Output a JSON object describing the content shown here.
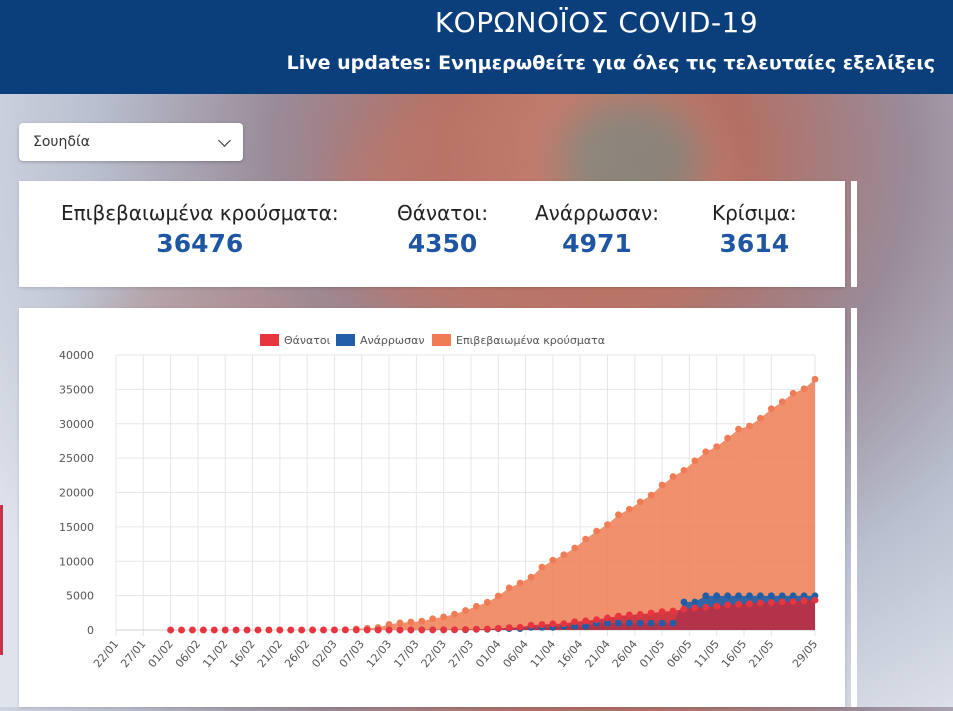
{
  "header": {
    "title": "ΚΟΡΩΝΟΪΟΣ COVID-19",
    "subtitle": "Live updates: Ενημερωθείτε για όλες τις τελευταίες εξελίξεις"
  },
  "country_select": {
    "value": "Σουηδία"
  },
  "stats": {
    "confirmed_label": "Επιβεβαιωμένα κρούσματα:",
    "confirmed_value": "36476",
    "deaths_label": "Θάνατοι:",
    "deaths_value": "4350",
    "recovered_label": "Ανάρρωσαν:",
    "recovered_value": "4971",
    "critical_label": "Κρίσιμα:",
    "critical_value": "3614"
  },
  "colors": {
    "header": "#0b3f7c",
    "accent": "#1f56a3",
    "deaths": "#e8343f",
    "recovered": "#1e5fa8",
    "confirmed": "#ef7c54"
  },
  "chart_data": {
    "type": "area",
    "title": "",
    "xlabel": "",
    "ylabel": "",
    "ylim": [
      0,
      40000
    ],
    "yticks": [
      0,
      5000,
      10000,
      15000,
      20000,
      25000,
      30000,
      35000,
      40000
    ],
    "legend_position": "top",
    "grid": true,
    "xticks": [
      "22/01",
      "27/01",
      "01/02",
      "06/02",
      "11/02",
      "16/02",
      "21/02",
      "26/02",
      "02/03",
      "07/03",
      "12/03",
      "17/03",
      "22/03",
      "27/03",
      "01/04",
      "06/04",
      "11/04",
      "16/04",
      "21/04",
      "26/04",
      "01/05",
      "06/05",
      "11/05",
      "16/05",
      "21/05",
      "29/05"
    ],
    "x": [
      "22/01",
      "27/01",
      "01/02",
      "03/02",
      "05/02",
      "07/02",
      "09/02",
      "11/02",
      "13/02",
      "15/02",
      "17/02",
      "19/02",
      "21/02",
      "23/02",
      "25/02",
      "27/02",
      "29/02",
      "02/03",
      "04/03",
      "06/03",
      "08/03",
      "10/03",
      "12/03",
      "14/03",
      "16/03",
      "18/03",
      "20/03",
      "22/03",
      "24/03",
      "26/03",
      "28/03",
      "30/03",
      "01/04",
      "03/04",
      "05/04",
      "07/04",
      "09/04",
      "11/04",
      "13/04",
      "15/04",
      "17/04",
      "19/04",
      "21/04",
      "23/04",
      "25/04",
      "27/04",
      "29/04",
      "01/05",
      "03/05",
      "05/05",
      "07/05",
      "09/05",
      "11/05",
      "13/05",
      "15/05",
      "17/05",
      "19/05",
      "21/05",
      "23/05",
      "25/05",
      "27/05",
      "29/05"
    ],
    "series": [
      {
        "name": "Θάνατοι",
        "color": "#e8343f",
        "values": [
          null,
          null,
          0,
          0,
          0,
          0,
          0,
          0,
          0,
          0,
          0,
          0,
          0,
          0,
          0,
          0,
          0,
          0,
          0,
          0,
          0,
          0,
          1,
          3,
          6,
          10,
          16,
          25,
          36,
          68,
          105,
          146,
          239,
          333,
          401,
          687,
          793,
          899,
          919,
          1203,
          1333,
          1511,
          1765,
          2021,
          2192,
          2274,
          2462,
          2669,
          2769,
          3040,
          3220,
          3313,
          3460,
          3646,
          3743,
          3831,
          3945,
          4020,
          4097,
          4125,
          4266,
          4350
        ]
      },
      {
        "name": "Ανάρρωσαν",
        "color": "#1e5fa8",
        "values": [
          null,
          null,
          null,
          null,
          null,
          null,
          null,
          null,
          null,
          null,
          null,
          null,
          null,
          null,
          null,
          null,
          null,
          null,
          null,
          null,
          null,
          1,
          1,
          1,
          1,
          16,
          16,
          16,
          16,
          16,
          103,
          103,
          205,
          205,
          205,
          381,
          381,
          381,
          550,
          550,
          550,
          1005,
          1005,
          1005,
          1005,
          1005,
          1005,
          1005,
          1005,
          4074,
          4074,
          4971,
          4971,
          4971,
          4971,
          4971,
          4971,
          4971,
          4971,
          4971,
          4971,
          4971
        ]
      },
      {
        "name": "Επιβεβαιωμένα κρούσματα",
        "color": "#ef7c54",
        "values": [
          null,
          null,
          1,
          1,
          1,
          1,
          1,
          1,
          1,
          1,
          1,
          1,
          1,
          1,
          2,
          7,
          12,
          15,
          52,
          161,
          248,
          355,
          814,
          1040,
          1167,
          1279,
          1639,
          1906,
          2299,
          2840,
          3447,
          4028,
          4947,
          6131,
          6830,
          7693,
          9141,
          10151,
          10948,
          11927,
          13216,
          14385,
          15322,
          16755,
          17567,
          18640,
          19621,
          21092,
          22317,
          23216,
          24623,
          25921,
          26670,
          27909,
          29207,
          29677,
          30799,
          32172,
          33188,
          34440,
          35088,
          36476
        ]
      }
    ]
  }
}
